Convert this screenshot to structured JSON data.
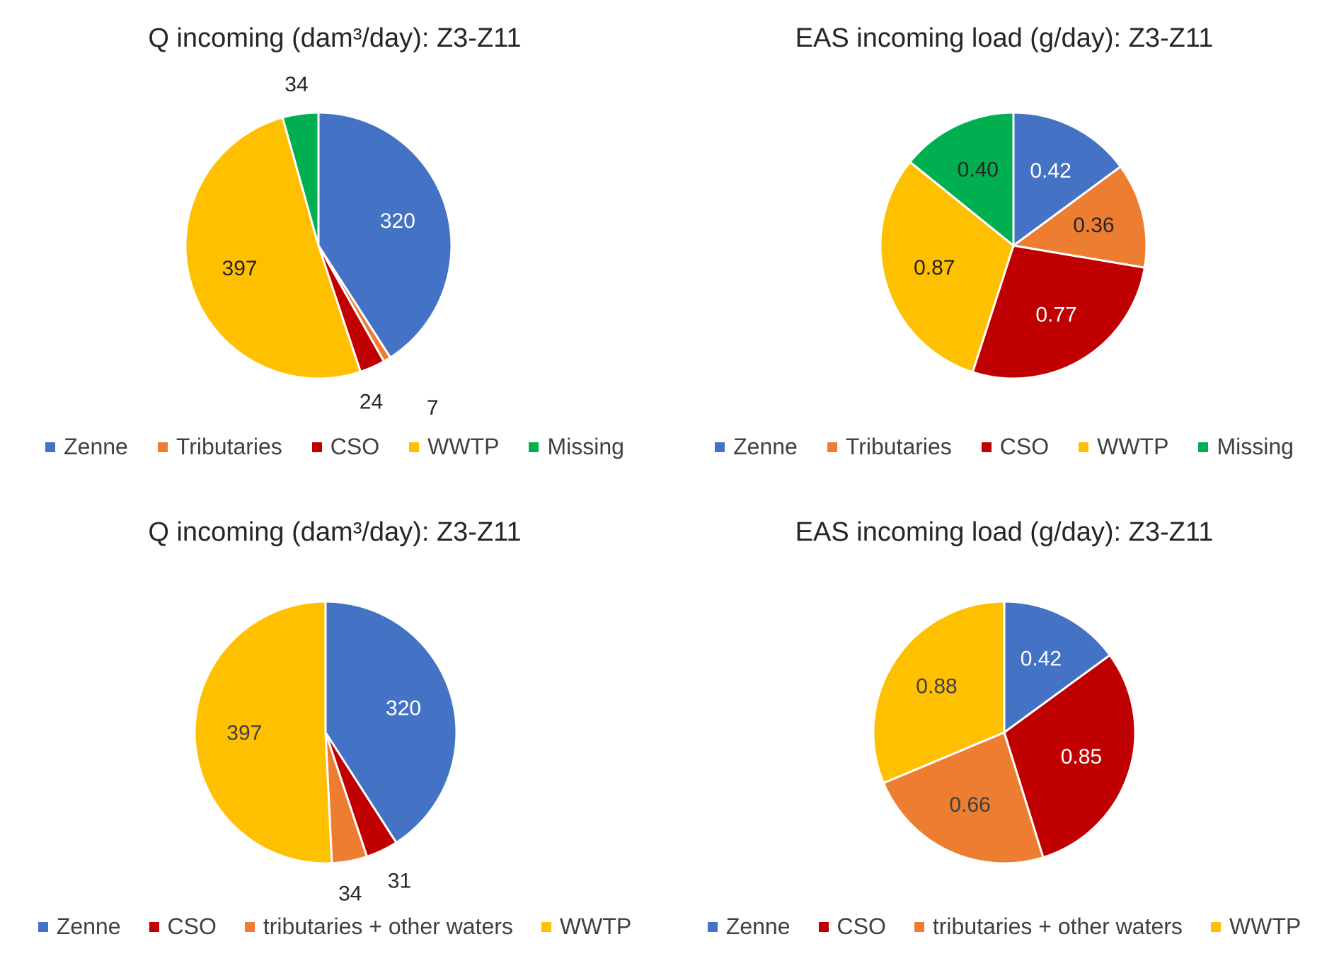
{
  "chart_data": [
    {
      "type": "pie",
      "title": "Q incoming (dam³/day): Z3-Z11",
      "series": [
        {
          "values": [
            320,
            7,
            24,
            397,
            34
          ],
          "labels": [
            "320",
            "7",
            "24",
            "397",
            "34"
          ]
        }
      ],
      "categories": [
        "Zenne",
        "Tributaries",
        "CSO",
        "WWTP",
        "Missing"
      ],
      "colors": [
        "#4472C4",
        "#ED7D31",
        "#C00000",
        "#FFC000",
        "#00B050"
      ],
      "label_placement": [
        "inside",
        "outside",
        "outside",
        "inside",
        "outside"
      ],
      "label_colors": [
        "#ffffff",
        "#262626",
        "#262626",
        "#262626",
        "#262626"
      ],
      "legend": "bottom"
    },
    {
      "type": "pie",
      "title": "EAS incoming load (g/day): Z3-Z11",
      "series": [
        {
          "values": [
            0.42,
            0.36,
            0.77,
            0.87,
            0.4
          ],
          "labels": [
            "0.42",
            "0.36",
            "0.77",
            "0.87",
            "0.40"
          ]
        }
      ],
      "categories": [
        "Zenne",
        "Tributaries",
        "CSO",
        "WWTP",
        "Missing"
      ],
      "colors": [
        "#4472C4",
        "#ED7D31",
        "#C00000",
        "#FFC000",
        "#00B050"
      ],
      "label_placement": [
        "inside",
        "inside",
        "inside",
        "inside",
        "inside"
      ],
      "label_colors": [
        "#ffffff",
        "#262626",
        "#ffffff",
        "#262626",
        "#262626"
      ],
      "legend": "bottom"
    },
    {
      "type": "pie",
      "title": "Q incoming (dam³/day): Z3-Z11",
      "series": [
        {
          "values": [
            320,
            31,
            34,
            397
          ],
          "labels": [
            "320",
            "31",
            "34",
            "397"
          ]
        }
      ],
      "categories": [
        "Zenne",
        "CSO",
        "tributaries + other waters",
        "WWTP"
      ],
      "colors": [
        "#4472C4",
        "#C00000",
        "#ED7D31",
        "#FFC000"
      ],
      "label_placement": [
        "inside",
        "outside",
        "outside",
        "inside"
      ],
      "label_colors": [
        "#ffffff",
        "#262626",
        "#262626",
        "#404040"
      ],
      "legend": "bottom"
    },
    {
      "type": "pie",
      "title": "EAS incoming load (g/day): Z3-Z11",
      "series": [
        {
          "values": [
            0.42,
            0.85,
            0.66,
            0.88
          ],
          "labels": [
            "0.42",
            "0.85",
            "0.66",
            "0.88"
          ]
        }
      ],
      "categories": [
        "Zenne",
        "CSO",
        "tributaries + other waters",
        "WWTP"
      ],
      "colors": [
        "#4472C4",
        "#C00000",
        "#ED7D31",
        "#FFC000"
      ],
      "label_placement": [
        "inside",
        "inside",
        "inside",
        "inside"
      ],
      "label_colors": [
        "#ffffff",
        "#ffffff",
        "#404040",
        "#404040"
      ],
      "legend": "bottom"
    }
  ]
}
